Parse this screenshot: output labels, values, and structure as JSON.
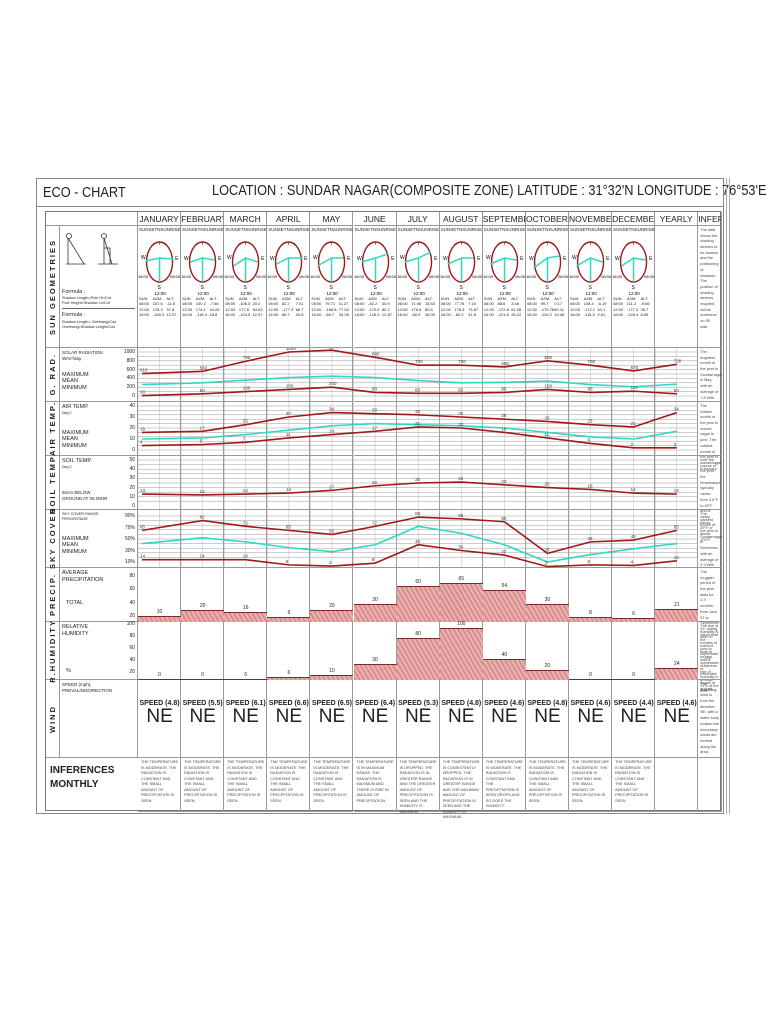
{
  "header": {
    "title_left": "ECO - CHART",
    "title_right": "LOCATION : SUNDAR NAGAR(COMPOSITE ZONE)   LATITUDE : 31°32'N LONGITUDE : 76°53'E"
  },
  "columns": {
    "months": [
      "JANUARY",
      "FEBRUARY",
      "MARCH",
      "APRIL",
      "MAY",
      "JUNE",
      "JULY",
      "AUGUST",
      "SEPTEMBER",
      "OCTOBER",
      "NOVEMBER",
      "DECEMBER"
    ],
    "yearly": "YEARLY",
    "inferences": "INFERENCES"
  },
  "sections": {
    "sun": {
      "label": "SUN GEOMETRIES",
      "formula1_title": "Formula :",
      "formula1_text": "Shadow Length=Pole Ht./Cot\nPole Height=Shadow Ln/Cot",
      "formula2_title": "Formula :",
      "formula2_text": "Shadow Length= Overhang/Cos\nOverhang=Shadow Lenght/Cos",
      "dial_labels": {
        "sunset": "SUNSET",
        "n": "N",
        "sunrise": "SUNRISE",
        "w": "W",
        "e": "E",
        "s": "S",
        "t_left": "16:00",
        "t_right": "08:00",
        "t_noon": "12:00"
      },
      "table_head": [
        "SUN",
        "AZM.",
        "ALT."
      ],
      "times": [
        "08:00",
        "12:00",
        "16:00"
      ],
      "monthly": [
        {
          "azm": [
            "107.6",
            "178.3",
            "-128.3"
          ],
          "alt": [
            "-11.6",
            "37.8",
            "12.07"
          ]
        },
        {
          "azm": [
            "100.2",
            "176.1",
            "-118.4"
          ],
          "alt": [
            "-7.66",
            "44.26",
            "18.8"
          ]
        },
        {
          "azm": [
            "-108.3",
            "177.8",
            "-124.5"
          ],
          "alt": [
            "20.2",
            "54.63",
            "12.57"
          ]
        },
        {
          "azm": [
            "82.7",
            "-177.3",
            "86.7"
          ],
          "alt": [
            "7.01",
            "66.7",
            "29.8"
          ]
        },
        {
          "azm": [
            "79.71",
            "-168.8",
            "-66.7"
          ],
          "alt": [
            "11.27",
            "77.52",
            "33.26"
          ]
        },
        {
          "azm": [
            "-82.2",
            "-170.9",
            "-126.3"
          ],
          "alt": [
            "30.9",
            "82.2",
            "12.87"
          ]
        },
        {
          "azm": [
            "71.56",
            "176.8",
            "-60.9"
          ],
          "alt": [
            "15.53",
            "80.5",
            "26.09"
          ]
        },
        {
          "azm": [
            "77.76",
            "178.3",
            "-82.2"
          ],
          "alt": [
            "7.15",
            "73.87",
            "31.8"
          ]
        },
        {
          "azm": [
            "88.6",
            "-172.8",
            "-121.6"
          ],
          "alt": [
            "3.48",
            "61.06",
            "26.22"
          ]
        },
        {
          "azm": [
            "99.7",
            "-170.78",
            "-110.3"
          ],
          "alt": [
            "0.17",
            "50.11",
            "19.48"
          ]
        },
        {
          "azm": [
            "108.4",
            "-172.1",
            "-118.3"
          ],
          "alt": [
            "-6.19",
            "40.1",
            "9.61"
          ]
        },
        {
          "azm": [
            "111.2",
            "-177.3",
            "-128.4"
          ],
          "alt": [
            "-9.66",
            "35.7",
            "8.65"
          ]
        }
      ],
      "inference": "The data shows the shading devices to be located and the positioning of windows. The position of shading devices required will be maximum on SE side."
    },
    "rad": {
      "label": "G. RAD.",
      "title": "SOLAR RADIATION",
      "unit": "W/m²/day",
      "legend": [
        "MAXIMUM",
        "MEAN",
        "MINIMUM"
      ],
      "ticks": [
        "1000",
        "800",
        "600",
        "400",
        "200",
        "0"
      ],
      "inference": "The brightest month of the year in Sundarnagar is May, with an average of 7.8 kWh."
    },
    "air": {
      "label": "AIR TEMP.",
      "title": "AIR TEMP.",
      "unit": "Deg C",
      "legend": [
        "MAXIMUM",
        "MEAN",
        "MINIMUM"
      ],
      "ticks": [
        "40",
        "30",
        "20",
        "10",
        "0"
      ],
      "inference": "The hottest month of the year in sunder nagar is june. The coldest month of the year in sundarnagar is january."
    },
    "soil": {
      "label": "SOIL TEMP.",
      "title": "SOIL TEMP.",
      "unit": "Deg C",
      "note": "50cm BELOW GROUND AT 08.00HR",
      "ticks": [
        "50",
        "40",
        "30",
        "20",
        "10",
        "0"
      ],
      "inference": "over the course of the year, the temperature typically varies from 3.6°F to 99°F and is rarely below 39°F or above 103°F."
    },
    "sky": {
      "label": "SKY COVER",
      "title": "SKY COVER RANGE PERCENTAGE",
      "legend": [
        "MAXIMUM",
        "MEAN",
        "MINIMUM"
      ],
      "ticks": [
        "90%",
        "70%",
        "50%",
        "30%",
        "10%"
      ],
      "inference": "The darkest month of the year in Sundarnagar is December, with an average of 2.9 kWh."
    },
    "precip": {
      "label": "PRECIP.",
      "title": "AVERAGE PRECIPITATION",
      "total_label": "TOTAL",
      "ticks": [
        "80",
        "60",
        "40",
        "20"
      ],
      "inference": "The muggier period of the year lasts for 2.9 months, from June 22 to September 19, during which time the comfort level is muggy, oppressive, or miserable at least 21% of the time."
    },
    "humidity": {
      "label": "R.HUMIDITY",
      "title": "RELATIVE HUMIDITY",
      "unit": "%",
      "ticks": [
        "100",
        "80",
        "60",
        "40",
        "20"
      ],
      "inference": "The rise of humidity is seen in months of june to september, with a maximum rise of humidity in month of august."
    },
    "wind": {
      "label": "WIND",
      "title": "SPEED (mph), PREVALINGDIRECTION",
      "speeds": [
        "SPEED (4.8)",
        "SPEED (5.5)",
        "SPEED (6.1)",
        "SPEED (6.6)",
        "SPEED (6.5)",
        "SPEED (6.4)",
        "SPEED (5.3)",
        "SPEED (4.8)",
        "SPEED (4.6)",
        "SPEED (4.8)",
        "SPEED (4.6)",
        "SPEED (4.4)",
        "SPEED (4.6)"
      ],
      "direction": "NE",
      "inference": "The prevailing wind is from the direction NE, with a water body located the secondary winds are formed along the area."
    },
    "monthly_inf": {
      "label_line1": "INFERENCES",
      "label_line2": "MONTHLY",
      "texts": [
        "THE TEMPERATURE IS MODERATE. THE RADIATION IS CONSTANT AND THE SMALL AMOUNT OF PRECIPITATION IS SEEN.",
        "THE TEMPERATURE IS MODERATE. THE RADIATION IS CONSTANT AND THE SMALL AMOUNT OF PRECIPITATION IS SEEN.",
        "THE TEMPERATURE IS MODERATE. THE RADIATION IS CONSTANT AND THE SMALL AMOUNT OF PRECIPITATION IS SEEN.",
        "THE TEMPERATURE IS MODERATE. THE RADIATION IS CONSTANT AND THE SMALL AMOUNT OF PRECIPITATION IS SEEN.",
        "THE TEMPERATURE IS MODERATE. THE RADIATION IS CONSTANT AND THE SMALL AMOUNT OF PRECIPITATION IS SEEN.",
        "THE TEMPERATURE IS IN MAXIMUM RANGE. THE RADIATION IS MAXIMUM AND THERE IS RISE IN AMOUNT OF PRECIPITATION.",
        "THE TEMPERATURE IS DROPPED. THE RADIATION IS IN GREATER RANGE AND THE GREATER AMOUNT OF PRECIPITATION IS SEEN AND THE HUMIDITY IS MAXIMUM.",
        "THE TEMPERATURE IS CONSISTENTLY DROPPED. THE RADIATION IS IN GREATER RANGE AND THE MAXIMUM AMOUNT OF PRECIPITATION IS SEEN AND THE HUMIDITY IS MAXIMUM.",
        "THE TEMPERATURE IS MODERATE. THE RADIATION IS CONSTANT AND THE PRECIPITATION IS SEEN DROPS AND SO DOES THE HUMIDITY.",
        "THE TEMPERATURE IS MODERATE. THE RADIATION IS CONSTANT AND THE SMALL AMOUNT OF PRECIPITATION IS SEEN.",
        "THE TEMPERATURE IS MODERATE. THE RADIATION IS CONSTANT AND THE SMALL AMOUNT OF PRECIPITATION IS SEEN.",
        "THE TEMPERATURE IS MODERATE. THE RADIATION IS CONSTANT AND THE SMALL AMOUNT OF PRECIPITATION IS SEEN."
      ]
    }
  },
  "colors": {
    "max_min": "#a01818",
    "mean": "#30d8c0",
    "bar_fill": "#d98c8c",
    "grid": "#888888"
  },
  "chart_data": [
    {
      "type": "line",
      "title": "SOLAR RADIATION (W/m²/day)",
      "categories": [
        "Jan",
        "Feb",
        "Mar",
        "Apr",
        "May",
        "Jun",
        "Jul",
        "Aug",
        "Sep",
        "Oct",
        "Nov",
        "Dec",
        "Yearly"
      ],
      "ylim": [
        0,
        1000
      ],
      "series": [
        {
          "name": "MAXIMUM",
          "values": [
            510,
            560,
            790,
            1000,
            1040,
            880,
            700,
            700,
            660,
            800,
            700,
            570,
            720
          ]
        },
        {
          "name": "MEAN",
          "values": [
            260,
            300,
            360,
            420,
            450,
            420,
            350,
            300,
            310,
            340,
            260,
            210,
            270
          ]
        },
        {
          "name": "MINIMUM",
          "values": [
            10,
            50,
            100,
            150,
            200,
            80,
            60,
            60,
            80,
            150,
            80,
            110,
            50
          ]
        }
      ]
    },
    {
      "type": "line",
      "title": "AIR TEMP. (Deg C)",
      "categories": [
        "Jan",
        "Feb",
        "Mar",
        "Apr",
        "May",
        "Jun",
        "Jul",
        "Aug",
        "Sep",
        "Oct",
        "Nov",
        "Dec",
        "Yearly"
      ],
      "ylim": [
        0,
        40
      ],
      "series": [
        {
          "name": "MAXIMUM",
          "values": [
            16,
            17,
            23,
            30,
            34,
            33,
            32,
            30,
            28,
            26,
            23,
            21,
            34
          ]
        },
        {
          "name": "MEAN",
          "values": [
            10,
            11,
            14,
            18,
            22,
            24,
            23,
            22,
            20,
            16,
            12,
            10,
            17
          ]
        },
        {
          "name": "MINIMUM",
          "values": [
            4,
            5,
            7,
            11,
            14,
            17,
            21,
            20,
            16,
            11,
            6,
            2,
            2
          ]
        }
      ]
    },
    {
      "type": "line",
      "title": "SOIL TEMP. (Deg C) 50cm below ground at 08.00HR",
      "categories": [
        "Jan",
        "Feb",
        "Mar",
        "Apr",
        "May",
        "Jun",
        "Jul",
        "Aug",
        "Sep",
        "Oct",
        "Nov",
        "Dec",
        "Yearly"
      ],
      "ylim": [
        0,
        50
      ],
      "series": [
        {
          "name": "SOIL",
          "values": [
            13,
            12,
            13,
            14,
            17,
            22,
            25,
            26,
            23,
            20,
            18,
            14,
            13
          ]
        }
      ]
    },
    {
      "type": "line",
      "title": "SKY COVER RANGE PERCENTAGE",
      "categories": [
        "Jan",
        "Feb",
        "Mar",
        "Apr",
        "May",
        "Jun",
        "Jul",
        "Aug",
        "Sep",
        "Oct",
        "Nov",
        "Dec",
        "Yearly"
      ],
      "ylim": [
        10,
        90
      ],
      "series": [
        {
          "name": "MAXIMUM",
          "values": [
            65,
            82,
            72,
            65,
            58,
            72,
            88,
            85,
            80,
            25,
            45,
            48,
            65
          ]
        },
        {
          "name": "MEAN",
          "values": [
            42,
            52,
            45,
            35,
            28,
            40,
            72,
            60,
            40,
            10,
            23,
            33,
            42
          ]
        },
        {
          "name": "MINIMUM",
          "values": [
            14,
            14,
            14,
            5,
            3,
            8,
            40,
            30,
            22,
            2,
            5,
            4,
            12
          ]
        }
      ]
    },
    {
      "type": "bar",
      "title": "AVERAGE PRECIPITATION TOTAL",
      "categories": [
        "Jan",
        "Feb",
        "Mar",
        "Apr",
        "May",
        "Jun",
        "Jul",
        "Aug",
        "Sep",
        "Oct",
        "Nov",
        "Dec",
        "Yearly"
      ],
      "values": [
        10,
        20,
        16,
        9,
        20,
        30,
        60,
        65,
        54,
        30,
        8,
        6,
        21
      ],
      "ylim": [
        0,
        80
      ]
    },
    {
      "type": "bar",
      "title": "RELATIVE HUMIDITY (%)",
      "categories": [
        "Jan",
        "Feb",
        "Mar",
        "Apr",
        "May",
        "Jun",
        "Jul",
        "Aug",
        "Sep",
        "Oct",
        "Nov",
        "Dec",
        "Yearly"
      ],
      "values": [
        0,
        0,
        0,
        6,
        10,
        30,
        80,
        100,
        40,
        20,
        0,
        0,
        24
      ],
      "ylim": [
        0,
        100
      ]
    },
    {
      "type": "table",
      "title": "WIND SPEED (mph), PREVAILING DIRECTION",
      "categories": [
        "Jan",
        "Feb",
        "Mar",
        "Apr",
        "May",
        "Jun",
        "Jul",
        "Aug",
        "Sep",
        "Oct",
        "Nov",
        "Dec",
        "Yearly"
      ],
      "values": [
        4.8,
        5.5,
        6.1,
        6.6,
        6.5,
        6.4,
        5.3,
        4.8,
        4.6,
        4.8,
        4.6,
        4.4,
        4.6
      ],
      "direction": "NE"
    }
  ]
}
